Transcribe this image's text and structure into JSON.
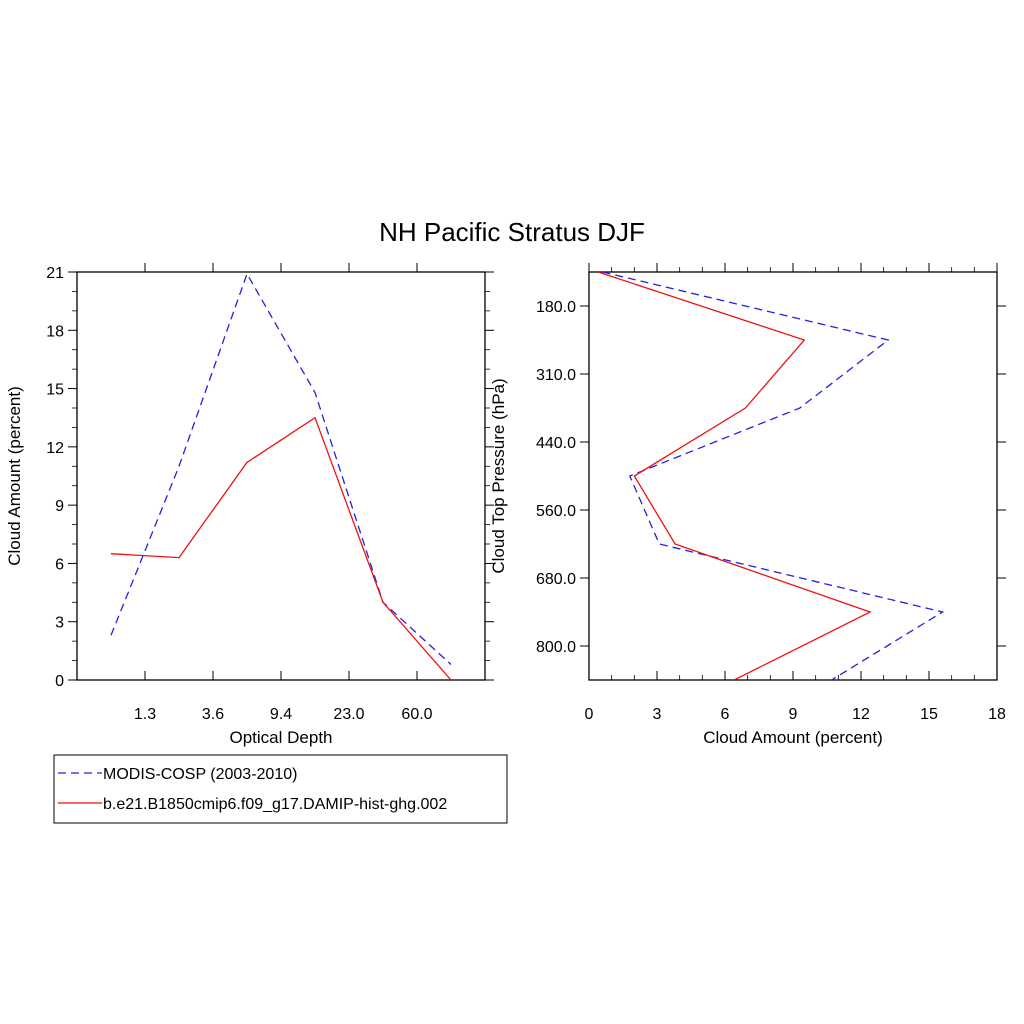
{
  "title": "NH Pacific Stratus DJF",
  "colors": {
    "obs": "#2222dd",
    "model": "#ee1111"
  },
  "legend": [
    {
      "label": "MODIS-COSP (2003-2010)",
      "style": "dashed",
      "color": "#2222dd"
    },
    {
      "label": "b.e21.B1850cmip6.f09_g17.DAMIP-hist-ghg.002",
      "style": "solid",
      "color": "#ee1111"
    }
  ],
  "chart_data": [
    {
      "type": "line",
      "xlabel": "Optical Depth",
      "ylabel": "Cloud Amount (percent)",
      "x_tick_labels": [
        "1.3",
        "3.6",
        "9.4",
        "23.0",
        "60.0"
      ],
      "ylim": [
        0,
        21
      ],
      "y_ticks": [
        0,
        3,
        6,
        9,
        12,
        15,
        18,
        21
      ],
      "series": [
        {
          "name": "MODIS-COSP (2003-2010)",
          "style": "dashed",
          "x": [
            0.5,
            1.5,
            2.5,
            3.5,
            4.5,
            5.5
          ],
          "y": [
            2.3,
            11.0,
            20.9,
            14.8,
            4.0,
            0.8
          ]
        },
        {
          "name": "b.e21.B1850cmip6.f09_g17.DAMIP-hist-ghg.002",
          "style": "solid",
          "x": [
            0.5,
            1.5,
            2.5,
            3.5,
            4.5,
            5.5
          ],
          "y": [
            6.5,
            6.3,
            11.2,
            13.5,
            4.0,
            0.0
          ]
        }
      ]
    },
    {
      "type": "line",
      "xlabel": "Cloud Amount (percent)",
      "ylabel": "Cloud Top Pressure (hPa)",
      "xlim": [
        0,
        18
      ],
      "x_ticks": [
        0,
        3,
        6,
        9,
        12,
        15,
        18
      ],
      "y_tick_labels": [
        "180.0",
        "310.0",
        "440.0",
        "560.0",
        "680.0",
        "800.0"
      ],
      "y_inverted": true,
      "series": [
        {
          "name": "MODIS-COSP (2003-2010)",
          "style": "dashed",
          "x": [
            0.6,
            13.2,
            9.3,
            1.8,
            3.1,
            15.6,
            10.7
          ],
          "y": [
            0.0,
            1.0,
            2.0,
            3.0,
            4.0,
            5.0,
            6.0
          ]
        },
        {
          "name": "b.e21.B1850cmip6.f09_g17.DAMIP-hist-ghg.002",
          "style": "solid",
          "x": [
            0.4,
            9.5,
            6.9,
            2.0,
            3.8,
            12.4,
            6.4
          ],
          "y": [
            0.0,
            1.0,
            2.0,
            3.0,
            4.0,
            5.0,
            6.0
          ]
        }
      ]
    }
  ]
}
